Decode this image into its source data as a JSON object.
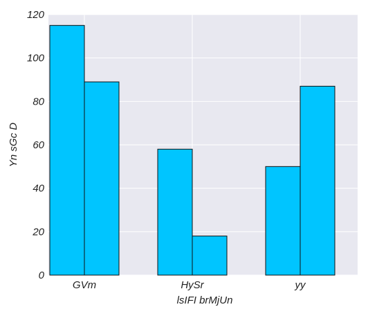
{
  "chart_data": {
    "type": "bar",
    "categories": [
      "GVm",
      "HySr",
      "yy"
    ],
    "series": [
      {
        "values": [
          115,
          89,
          0
        ]
      },
      {
        "values": [
          0,
          58,
          18
        ]
      },
      {
        "values": [
          50,
          87,
          0
        ]
      }
    ],
    "bar_groups": [
      [
        115,
        89
      ],
      [
        58,
        18
      ],
      [
        50,
        87
      ]
    ],
    "xlabel": "lsIFI brMjUn",
    "ylabel": "Yn sGc D",
    "ylim": [
      0,
      120
    ],
    "yticks": [
      "0",
      "20",
      "40",
      "60",
      "80",
      "100",
      "120"
    ],
    "grid": true,
    "legend": "none",
    "colors": {
      "bar": "#00c5ff",
      "bar_edge": "#111111",
      "plot_bg": "#e8e8f0",
      "grid": "#ffffff"
    }
  }
}
